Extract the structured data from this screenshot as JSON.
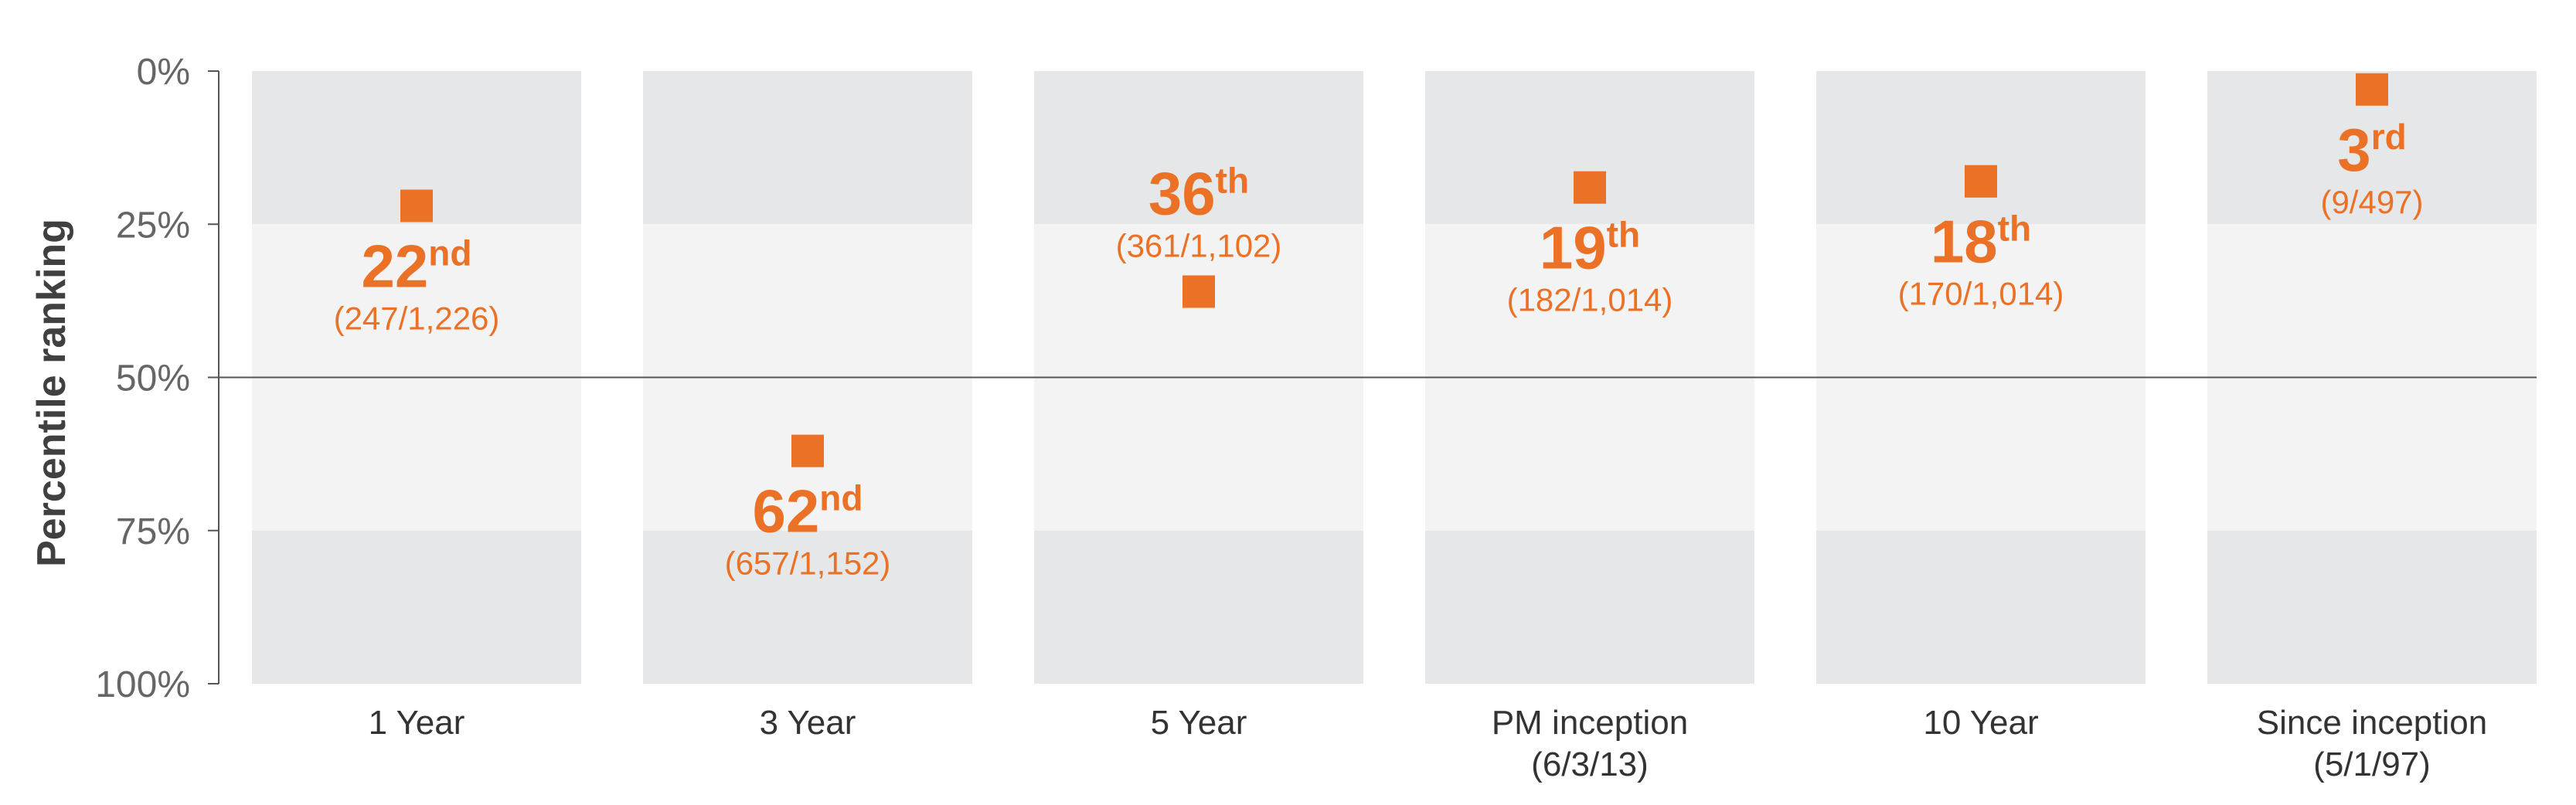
{
  "colors": {
    "marker": "#EA7125",
    "band_dark": "#E6E7E8",
    "band_light": "#F3F3F3",
    "axis": "#555555",
    "tick_text": "#666666"
  },
  "chart_data": {
    "type": "scatter",
    "ylabel": "Percentile ranking",
    "xlabel": "",
    "title": "",
    "y_axis": {
      "range": [
        0,
        100
      ],
      "inverted": true,
      "ticks": [
        0,
        25,
        50,
        75,
        100
      ],
      "tick_labels": [
        "0%",
        "25%",
        "50%",
        "75%",
        "100%"
      ],
      "reference_line": 50
    },
    "quartile_bands": [
      {
        "from": 0,
        "to": 25,
        "shade": "dark"
      },
      {
        "from": 25,
        "to": 75,
        "shade": "light"
      },
      {
        "from": 75,
        "to": 100,
        "shade": "dark"
      }
    ],
    "categories": [
      {
        "label": [
          "1 Year"
        ],
        "percentile": 22,
        "rank_number": "22",
        "rank_suffix": "nd",
        "detail": "(247/1,226)",
        "label_position": "below"
      },
      {
        "label": [
          "3 Year"
        ],
        "percentile": 62,
        "rank_number": "62",
        "rank_suffix": "nd",
        "detail": "(657/1,152)",
        "label_position": "below"
      },
      {
        "label": [
          "5 Year"
        ],
        "percentile": 36,
        "rank_number": "36",
        "rank_suffix": "th",
        "detail": "(361/1,102)",
        "label_position": "above"
      },
      {
        "label": [
          "PM inception",
          "(6/3/13)"
        ],
        "percentile": 19,
        "rank_number": "19",
        "rank_suffix": "th",
        "detail": "(182/1,014)",
        "label_position": "below"
      },
      {
        "label": [
          "10 Year"
        ],
        "percentile": 18,
        "rank_number": "18",
        "rank_suffix": "th",
        "detail": "(170/1,014)",
        "label_position": "below"
      },
      {
        "label": [
          "Since inception",
          "(5/1/97)"
        ],
        "percentile": 3,
        "rank_number": "3",
        "rank_suffix": "rd",
        "detail": "(9/497)",
        "label_position": "below"
      }
    ]
  }
}
